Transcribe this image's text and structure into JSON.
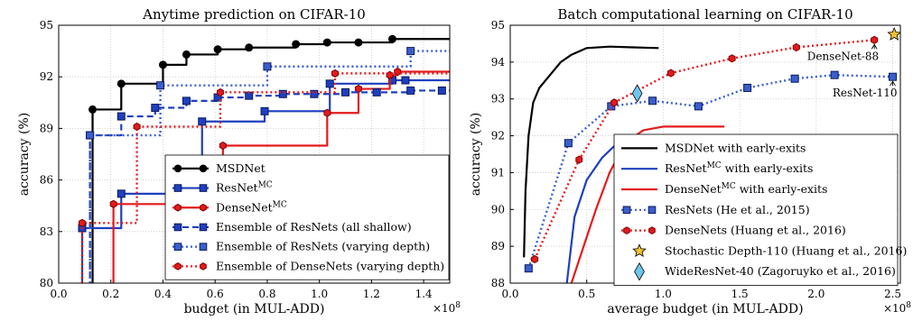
{
  "chart_data": [
    {
      "type": "line",
      "title": "Anytime prediction on CIFAR-10",
      "xlabel": "budget (in MUL-ADD)",
      "ylabel": "accuracy (%)",
      "x_multiplier": "×10",
      "x_multiplier_exp": "8",
      "xlim": [
        0,
        1.5
      ],
      "ylim": [
        80,
        95
      ],
      "xticks": [
        "0.0",
        "0.2",
        "0.4",
        "0.6",
        "0.8",
        "1.0",
        "1.2",
        "1.4"
      ],
      "yticks": [
        "80",
        "83",
        "86",
        "89",
        "92",
        "95"
      ],
      "grid": true,
      "legend_position": "lower-right",
      "series": [
        {
          "name": "MSDNet",
          "color": "#000000",
          "style": "step-solid",
          "marker": "circle",
          "x": [
            0.13,
            0.24,
            0.4,
            0.49,
            0.61,
            0.73,
            0.91,
            1.03,
            1.15,
            1.28
          ],
          "y": [
            90.1,
            91.6,
            92.7,
            93.3,
            93.6,
            93.7,
            93.9,
            94.0,
            94.0,
            94.2
          ]
        },
        {
          "name": "ResNet",
          "name_sup": "MC",
          "color": "#1f3fbf",
          "style": "step-solid",
          "marker": "square",
          "x": [
            0.09,
            0.24,
            0.55,
            0.79,
            1.04,
            1.28,
            1.33
          ],
          "y": [
            83.2,
            85.2,
            89.4,
            90.0,
            91.6,
            91.8,
            91.8
          ]
        },
        {
          "name": "DenseNet",
          "name_sup": "MC",
          "color": "#e41a1c",
          "style": "step-solid",
          "marker": "hexagon",
          "x": [
            0.21,
            0.63,
            1.03,
            1.15,
            1.27,
            1.3
          ],
          "y": [
            84.6,
            88.0,
            89.9,
            91.3,
            92.1,
            92.3
          ]
        },
        {
          "name": "Ensemble of ResNets (all shallow)",
          "color": "#1f3fbf",
          "style": "step-dashed",
          "marker": "square",
          "x": [
            0.12,
            0.24,
            0.37,
            0.49,
            0.61,
            0.73,
            0.86,
            0.98,
            1.1,
            1.22,
            1.35,
            1.47
          ],
          "y": [
            88.6,
            89.7,
            90.2,
            90.6,
            90.8,
            90.9,
            91.0,
            91.0,
            91.1,
            91.1,
            91.2,
            91.2
          ]
        },
        {
          "name": "Ensemble of ResNets (varying depth)",
          "color": "#3a5fcd",
          "style": "step-dotted",
          "marker": "square",
          "x": [
            0.12,
            0.39,
            0.8,
            1.35
          ],
          "y": [
            88.6,
            91.5,
            92.6,
            93.5
          ]
        },
        {
          "name": "Ensemble of DenseNets (varying depth)",
          "color": "#e41a1c",
          "style": "step-dotted",
          "marker": "hexagon",
          "x": [
            0.09,
            0.3,
            0.62,
            1.06
          ],
          "y": [
            83.5,
            89.1,
            91.1,
            92.2
          ]
        }
      ]
    },
    {
      "type": "line",
      "title": "Batch computational learning on CIFAR-10",
      "xlabel": "average budget (in MUL-ADD)",
      "ylabel": "accuracy (%)",
      "x_multiplier": "×10",
      "x_multiplier_exp": "8",
      "xlim": [
        0,
        2.55
      ],
      "ylim": [
        88,
        95
      ],
      "xticks": [
        "0.0",
        "0.5",
        "1.0",
        "1.5",
        "2.0",
        "2.5"
      ],
      "yticks": [
        "88",
        "89",
        "90",
        "91",
        "92",
        "93",
        "94",
        "95"
      ],
      "grid": true,
      "legend_position": "lower-right",
      "series": [
        {
          "name": "MSDNet with early-exits",
          "color": "#000000",
          "style": "solid",
          "x": [
            0.09,
            0.1,
            0.12,
            0.15,
            0.19,
            0.25,
            0.33,
            0.4,
            0.5,
            0.65,
            0.8,
            0.97
          ],
          "y": [
            88.7,
            90.5,
            92.0,
            92.9,
            93.3,
            93.6,
            94.0,
            94.2,
            94.38,
            94.42,
            94.4,
            94.38
          ]
        },
        {
          "name": "ResNet",
          "name_sup": "MC",
          "name_suffix": " with early-exits",
          "color": "#1f3fbf",
          "style": "solid",
          "x": [
            0.37,
            0.42,
            0.5,
            0.6,
            0.7,
            0.8
          ],
          "y": [
            88.0,
            89.8,
            90.8,
            91.4,
            91.8,
            92.0
          ]
        },
        {
          "name": "DenseNet",
          "name_sup": "MC",
          "name_suffix": " with early-exits",
          "color": "#e41a1c",
          "style": "solid",
          "x": [
            0.4,
            0.48,
            0.56,
            0.65,
            0.75,
            0.87,
            1.0,
            1.2,
            1.4
          ],
          "y": [
            88.0,
            89.0,
            90.0,
            91.0,
            91.8,
            92.15,
            92.25,
            92.25,
            92.25
          ]
        },
        {
          "name": "ResNets (He et al., 2015)",
          "color": "#3a5fcd",
          "style": "dotted",
          "marker": "square",
          "x": [
            0.12,
            0.38,
            0.66,
            0.93,
            1.23,
            1.55,
            1.86,
            2.12,
            2.5
          ],
          "y": [
            88.4,
            91.8,
            92.8,
            92.95,
            92.8,
            93.3,
            93.55,
            93.65,
            93.6
          ]
        },
        {
          "name": "DenseNets (Huang et al., 2016)",
          "color": "#e41a1c",
          "style": "dotted",
          "marker": "hexagon",
          "x": [
            0.16,
            0.45,
            0.68,
            1.05,
            1.45,
            1.87,
            2.38
          ],
          "y": [
            88.65,
            91.35,
            92.9,
            93.7,
            94.1,
            94.4,
            94.6
          ]
        },
        {
          "name": "Stochastic Depth-110 (Huang et al., 2016)",
          "color": "#f2c230",
          "style": "none",
          "marker": "star",
          "x": [
            2.51
          ],
          "y": [
            94.75
          ]
        },
        {
          "name": "WideResNet-40 (Zagoruyko et al., 2016)",
          "color": "#6ec6ec",
          "style": "none",
          "marker": "diamond",
          "x": [
            0.83
          ],
          "y": [
            93.15
          ]
        }
      ],
      "annotations": [
        {
          "text": "DenseNet-88",
          "x": 2.38,
          "y": 94.6
        },
        {
          "text": "ResNet-110",
          "x": 2.5,
          "y": 93.6
        }
      ]
    }
  ]
}
